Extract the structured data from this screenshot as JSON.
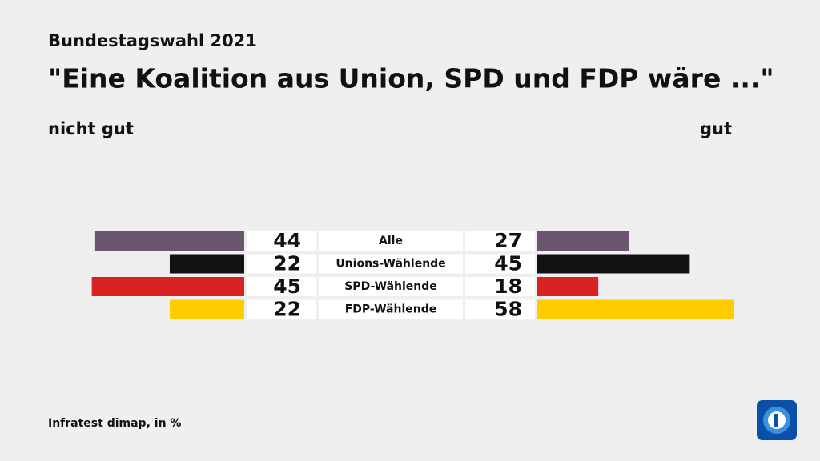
{
  "chart_data": {
    "type": "diverging_bar",
    "subtitle": "Bundestagswahl 2021",
    "title": "\"Eine Koalition aus Union, SPD und FDP wäre ...\"",
    "categories": [
      "Alle",
      "Unions-Wählende",
      "SPD-Wählende",
      "FDP-Wählende"
    ],
    "colors": [
      "#6b5670",
      "#111111",
      "#d92121",
      "#ffcc00"
    ],
    "series": [
      {
        "name": "nicht gut",
        "values": [
          44,
          22,
          45,
          22
        ]
      },
      {
        "name": "gut",
        "values": [
          27,
          45,
          18,
          58
        ]
      }
    ],
    "source": "Infratest dimap, in %"
  }
}
